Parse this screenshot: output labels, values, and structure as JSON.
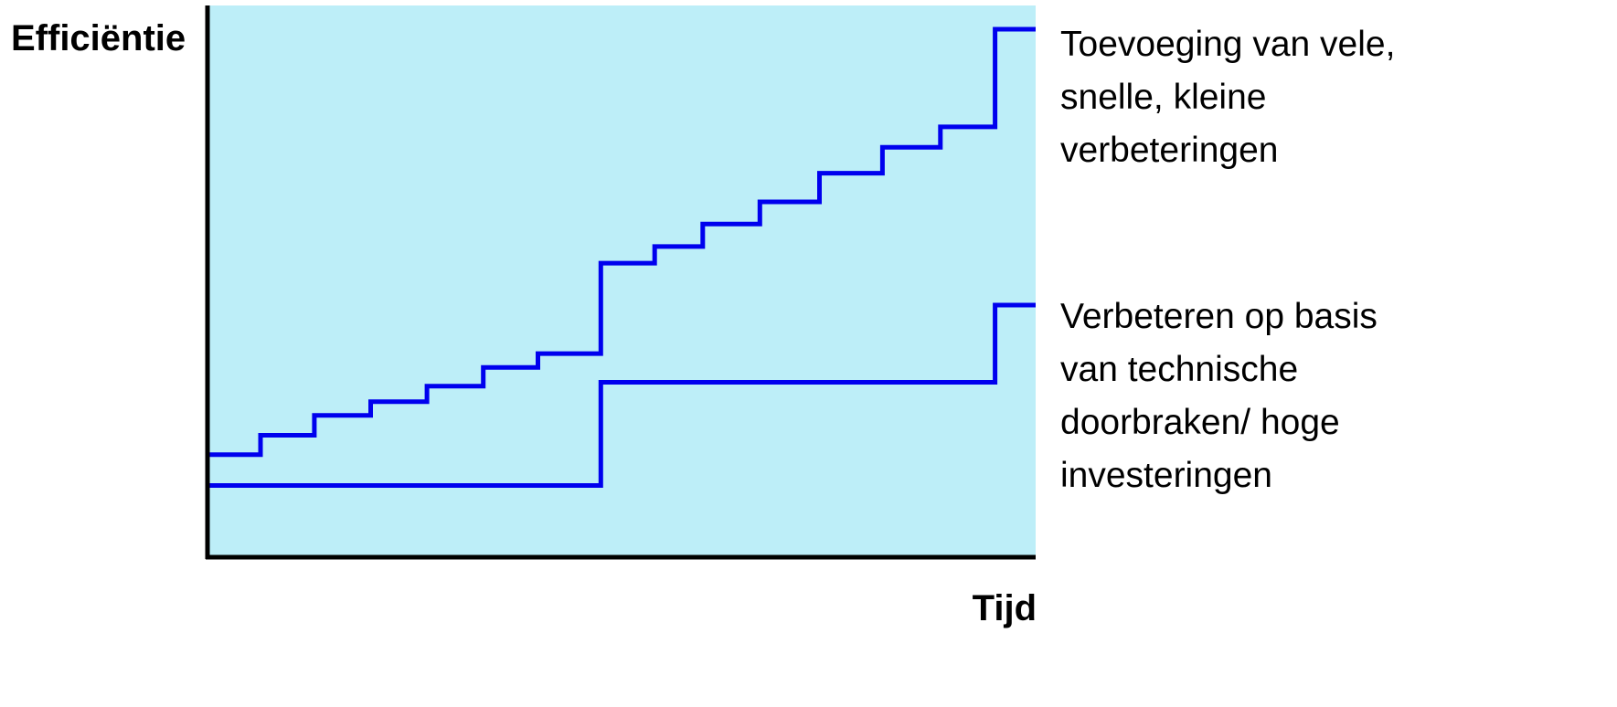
{
  "chart_data": {
    "type": "line",
    "step": "post",
    "title": "",
    "xlabel": "Tijd",
    "ylabel": "Efficiëntie",
    "xlim": [
      0,
      100
    ],
    "ylim": [
      0,
      100
    ],
    "axis_ticks": false,
    "grid": false,
    "plot_background": "#BDEEF8",
    "series": [
      {
        "name": "Toevoeging van vele, snelle, kleine verbeteringen",
        "label_lines": [
          "Toevoeging van vele,",
          "snelle, kleine",
          "verbeteringen"
        ],
        "color": "#0000EE",
        "x": [
          0,
          6.4,
          12.9,
          19.7,
          26.5,
          33.3,
          39.9,
          47.5,
          54.0,
          59.8,
          66.7,
          73.9,
          81.5,
          88.5,
          95.1,
          100
        ],
        "y": [
          18.6,
          22.1,
          25.7,
          28.2,
          31.0,
          34.4,
          36.9,
          53.3,
          56.3,
          60.4,
          64.4,
          69.6,
          74.3,
          78.0,
          95.7,
          95.7
        ]
      },
      {
        "name": "Verbeteren op basis van technische doorbraken/ hoge investeringen",
        "label_lines": [
          "Verbeteren op basis",
          "van technische",
          "doorbraken/ hoge",
          "investeringen"
        ],
        "color": "#0000EE",
        "x": [
          0,
          47.5,
          95.1,
          100
        ],
        "y": [
          13.0,
          31.7,
          45.7,
          45.7
        ]
      }
    ]
  }
}
